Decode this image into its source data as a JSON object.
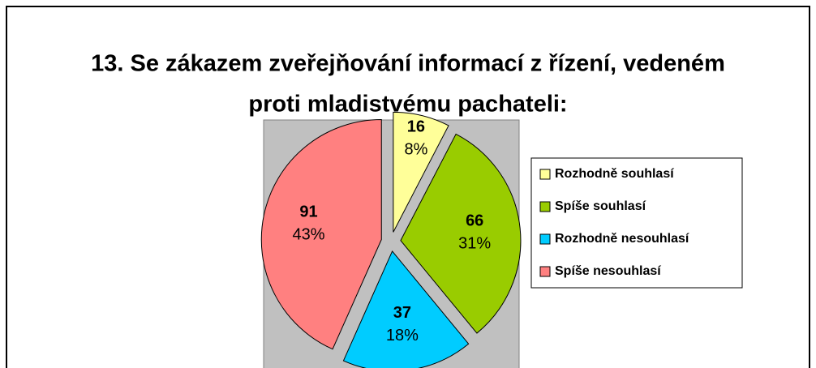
{
  "chart_data": {
    "type": "pie",
    "title_lines": [
      "13. Se zákazem zveřejňování informací z řízení, vedeném",
      "proti mladistvému pachateli:"
    ],
    "categories": [
      "Rozhodně souhlasí",
      "Spíše souhlasí",
      "Rozhodně nesouhlasí",
      "Spíše nesouhlasí"
    ],
    "values": [
      16,
      66,
      37,
      91
    ],
    "percent_labels": [
      "8%",
      "31%",
      "18%",
      "43%"
    ],
    "colors": [
      "#ffff99",
      "#99cc00",
      "#00ccff",
      "#ff8080"
    ],
    "legend": "right"
  }
}
